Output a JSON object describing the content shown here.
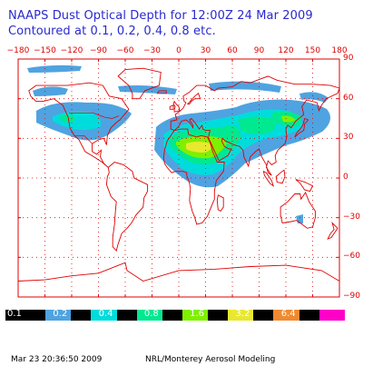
{
  "title_line1": "NAAPS Dust Optical Depth for 12:00Z 24 Mar 2009",
  "title_line2": "Contoured at 0.1, 0.2, 0.4, 0.8 etc.",
  "colors": {
    "title": "#2a2ad0",
    "axis": "#e00000",
    "coast": "#e00000",
    "grid": "#e00000"
  },
  "lon_ticks": [
    "−180",
    "−150",
    "−120",
    "−90",
    "−60",
    "−30",
    "0",
    "30",
    "60",
    "90",
    "120",
    "150",
    "180"
  ],
  "lat_ticks": [
    "90",
    "60",
    "30",
    "0",
    "−30",
    "−60",
    "−90"
  ],
  "colorbar": [
    {
      "label": "0.1",
      "color": "#4fa3e0",
      "text_color": "#ffffff"
    },
    {
      "label": "0.2",
      "color": "#00dcdc",
      "text_color": "#000000"
    },
    {
      "label": "0.4",
      "color": "#00e890",
      "text_color": "#ffffff"
    },
    {
      "label": "0.8",
      "color": "#7ef000",
      "text_color": "#ffffff"
    },
    {
      "label": "1.6",
      "color": "#e8e830",
      "text_color": "#000000"
    },
    {
      "label": "3.2",
      "color": "#f08a30",
      "text_color": "#000000"
    },
    {
      "label": "6.4",
      "color": "#ff00c8",
      "text_color": "#ffffff"
    }
  ],
  "footer_left": "Mar 23 20:36:50 2009",
  "footer_right": "NRL/Monterey Aerosol Modeling"
}
